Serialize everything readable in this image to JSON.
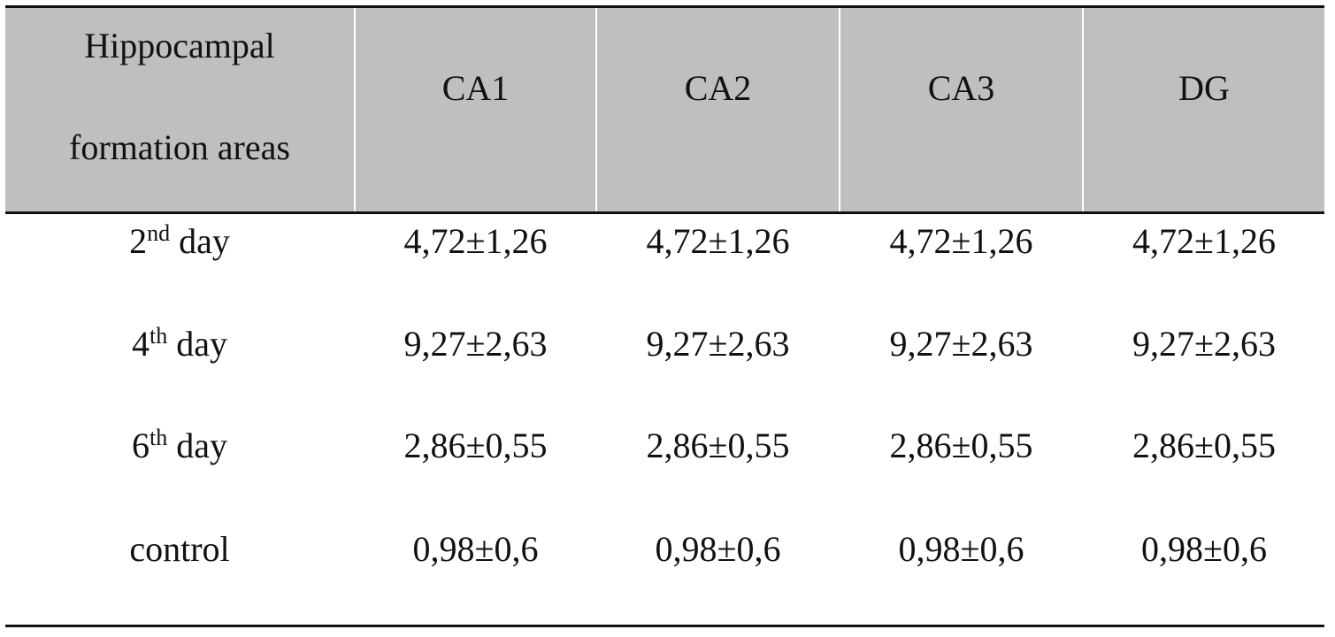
{
  "table": {
    "header": [
      "Hippocampal formation areas",
      "CA1",
      "CA2",
      "CA3",
      "DG"
    ],
    "rows": [
      {
        "label": {
          "num": "2",
          "sup": "nd",
          "rest": "day"
        },
        "cells": [
          "4,72±1,26",
          "4,72±1,26",
          "4,72±1,26",
          "4,72±1,26"
        ]
      },
      {
        "label": {
          "num": "4",
          "sup": "th",
          "rest": "day"
        },
        "cells": [
          "9,27±2,63",
          "9,27±2,63",
          "9,27±2,63",
          "9,27±2,63"
        ]
      },
      {
        "label": {
          "num": "6",
          "sup": "th",
          "rest": "day"
        },
        "cells": [
          "2,86±0,55",
          "2,86±0,55",
          "2,86±0,55",
          "2,86±0,55"
        ]
      },
      {
        "label": {
          "rest": "control"
        },
        "cells": [
          "0,98±0,6",
          "0,98±0,6",
          "0,98±0,6",
          "0,98±0,6"
        ]
      }
    ]
  }
}
